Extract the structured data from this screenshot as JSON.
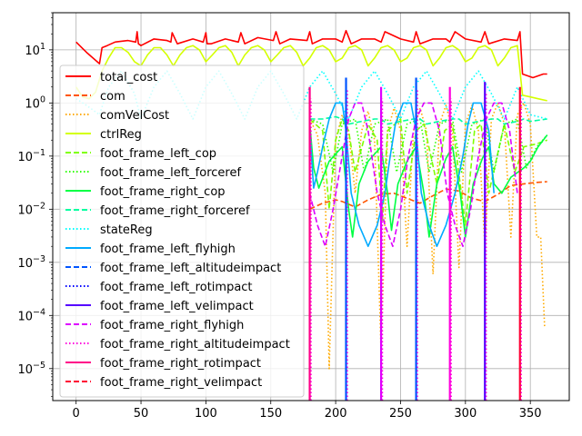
{
  "chart_data": {
    "type": "line",
    "title": "",
    "xlabel": "",
    "ylabel": "",
    "xlim": [
      -18,
      380
    ],
    "ylim": [
      2.5e-06,
      50
    ],
    "yscale": "log",
    "grid": true,
    "legend_position": "upper-left",
    "x_ticks": [
      0,
      50,
      100,
      150,
      200,
      250,
      300,
      350
    ],
    "x_tick_labels": [
      "0",
      "50",
      "100",
      "150",
      "200",
      "250",
      "300",
      "350"
    ],
    "y_ticks": [
      {
        "base": "10",
        "exp": "1"
      },
      {
        "base": "10",
        "exp": "0"
      },
      {
        "base": "10",
        "exp": "−1"
      },
      {
        "base": "10",
        "exp": "−2"
      },
      {
        "base": "10",
        "exp": "−3"
      },
      {
        "base": "10",
        "exp": "−4"
      },
      {
        "base": "10",
        "exp": "−5"
      }
    ],
    "series": [
      {
        "name": "total_cost",
        "color": "#ff0000",
        "dash": "solid",
        "x": [
          0,
          8,
          18,
          20,
          24,
          30,
          40,
          46,
          47,
          48,
          50,
          60,
          70,
          73,
          74,
          78,
          90,
          98,
          100,
          101,
          104,
          115,
          125,
          127,
          130,
          140,
          152,
          154,
          157,
          165,
          178,
          180,
          182,
          190,
          200,
          205,
          208,
          212,
          220,
          230,
          235,
          238,
          250,
          260,
          262,
          265,
          275,
          285,
          288,
          292,
          300,
          312,
          315,
          318,
          330,
          340,
          342,
          344,
          352,
          360,
          363
        ],
        "y": [
          14,
          9,
          5.5,
          11,
          12,
          14,
          15,
          14,
          22,
          13,
          12,
          16,
          15,
          14,
          21,
          13,
          16,
          14,
          21,
          13,
          13,
          16,
          14,
          21,
          13,
          17,
          15,
          22,
          13,
          16,
          15,
          22,
          13,
          16,
          16,
          14,
          23,
          13,
          16,
          16,
          14,
          22,
          16,
          14,
          22,
          13,
          16,
          16,
          14,
          22,
          16,
          14,
          22,
          13,
          16,
          15,
          22,
          3.5,
          3.0,
          3.5,
          3.5
        ]
      },
      {
        "name": "com",
        "color": "#ff5500",
        "dash": "dashed",
        "x": [
          180,
          190,
          200,
          205,
          215,
          225,
          235,
          245,
          255,
          265,
          275,
          285,
          295,
          305,
          315,
          325,
          335,
          345,
          355,
          363
        ],
        "y": [
          0.01,
          0.013,
          0.015,
          0.014,
          0.011,
          0.015,
          0.019,
          0.02,
          0.016,
          0.013,
          0.018,
          0.024,
          0.022,
          0.016,
          0.014,
          0.019,
          0.028,
          0.03,
          0.032,
          0.033
        ]
      },
      {
        "name": "comVelCost",
        "color": "#ffaa00",
        "dash": "dotted",
        "x": [
          180,
          186,
          192,
          195,
          200,
          205,
          210,
          215,
          220,
          225,
          230,
          235,
          240,
          245,
          250,
          255,
          260,
          265,
          270,
          275,
          280,
          285,
          290,
          295,
          300,
          305,
          310,
          315,
          320,
          325,
          330,
          335,
          340,
          345,
          350,
          355,
          358,
          361
        ],
        "y": [
          0.5,
          0.25,
          0.02,
          1e-05,
          0.2,
          0.6,
          0.3,
          0.02,
          0.3,
          0.7,
          0.2,
          2e-05,
          0.3,
          0.8,
          0.3,
          0.002,
          0.3,
          0.8,
          0.3,
          0.0006,
          0.4,
          0.9,
          0.3,
          0.0008,
          0.4,
          0.9,
          0.3,
          0.002,
          0.5,
          1.0,
          0.4,
          0.003,
          0.6,
          1.0,
          0.4,
          0.003,
          0.003,
          6e-05
        ]
      },
      {
        "name": "ctrlReg",
        "color": "#d4ff00",
        "dash": "solid",
        "x": [
          0,
          5,
          10,
          15,
          20,
          25,
          30,
          35,
          40,
          45,
          50,
          55,
          60,
          65,
          70,
          75,
          80,
          85,
          90,
          95,
          100,
          105,
          110,
          115,
          120,
          125,
          130,
          135,
          140,
          145,
          150,
          155,
          160,
          165,
          170,
          175,
          180,
          185,
          190,
          195,
          200,
          205,
          210,
          215,
          220,
          225,
          230,
          235,
          240,
          245,
          250,
          255,
          260,
          265,
          270,
          275,
          280,
          285,
          290,
          295,
          300,
          305,
          310,
          315,
          320,
          325,
          330,
          335,
          340,
          344,
          350,
          356,
          363
        ],
        "y": [
          2,
          1.3,
          1.2,
          1.6,
          4,
          7,
          11,
          11,
          9,
          6,
          5,
          8,
          11,
          11,
          8,
          5,
          8,
          11,
          12,
          10,
          6,
          8,
          11,
          12,
          9,
          5,
          8,
          11,
          12,
          10,
          6,
          8,
          11,
          12,
          9,
          5,
          7,
          11,
          12,
          10,
          6,
          7,
          11,
          12,
          10,
          5,
          7,
          11,
          12,
          10,
          6,
          7,
          11,
          12,
          10,
          5,
          7,
          11,
          12,
          10,
          6,
          7,
          11,
          12,
          10,
          5,
          7,
          11,
          12,
          1.4,
          1.3,
          1.2,
          1.1
        ]
      },
      {
        "name": "foot_frame_left_cop",
        "color": "#7fff00",
        "dash": "dashed",
        "x": [
          180,
          190,
          195,
          200,
          205,
          210,
          215,
          225,
          232,
          236,
          240,
          250,
          255,
          262,
          268,
          278,
          284,
          290,
          300,
          307,
          312,
          318,
          330,
          338,
          345,
          355,
          363
        ],
        "y": [
          0.5,
          0.3,
          0.01,
          0.2,
          0.5,
          0.3,
          0.05,
          0.4,
          0.2,
          0.006,
          0.3,
          0.5,
          0.02,
          0.3,
          0.4,
          0.03,
          0.3,
          0.4,
          0.005,
          0.3,
          0.4,
          0.02,
          0.4,
          0.05,
          0.15,
          0.17,
          0.2
        ]
      },
      {
        "name": "foot_frame_left_forceref",
        "color": "#2fff00",
        "dash": "dotted",
        "x": [
          180,
          190,
          198,
          205,
          215,
          222,
          230,
          240,
          247,
          255,
          265,
          272,
          280,
          290,
          297,
          305,
          315,
          322,
          330,
          340,
          347,
          355,
          363
        ],
        "y": [
          0.5,
          0.4,
          0.05,
          0.4,
          0.5,
          0.05,
          0.4,
          0.5,
          0.05,
          0.4,
          0.5,
          0.05,
          0.4,
          0.5,
          0.05,
          0.4,
          0.5,
          0.05,
          0.4,
          0.5,
          0.06,
          0.15,
          0.25
        ]
      },
      {
        "name": "foot_frame_right_cop",
        "color": "#00ff44",
        "dash": "solid",
        "x": [
          180,
          183,
          187,
          195,
          205,
          210,
          213,
          218,
          225,
          235,
          240,
          243,
          248,
          255,
          262,
          268,
          272,
          278,
          285,
          290,
          296,
          300,
          306,
          313,
          318,
          322,
          328,
          335,
          345,
          350,
          356,
          363
        ],
        "y": [
          0.4,
          0.06,
          0.025,
          0.08,
          0.15,
          0.01,
          0.003,
          0.03,
          0.08,
          0.15,
          0.02,
          0.004,
          0.03,
          0.08,
          0.15,
          0.02,
          0.003,
          0.03,
          0.09,
          0.15,
          0.02,
          0.003,
          0.03,
          0.09,
          0.15,
          0.03,
          0.02,
          0.04,
          0.06,
          0.08,
          0.15,
          0.25
        ]
      },
      {
        "name": "foot_frame_right_forceref",
        "color": "#00ffa0",
        "dash": "dashed",
        "x": [
          180,
          190,
          200,
          205,
          210,
          220,
          230,
          235,
          240,
          250,
          260,
          265,
          270,
          280,
          290,
          295,
          300,
          310,
          320,
          325,
          330,
          340,
          345,
          350,
          363
        ],
        "y": [
          0.5,
          0.5,
          0.55,
          0.5,
          0.4,
          0.45,
          0.5,
          0.5,
          0.4,
          0.45,
          0.5,
          0.5,
          0.4,
          0.45,
          0.5,
          0.5,
          0.4,
          0.45,
          0.5,
          0.5,
          0.4,
          0.45,
          0.5,
          0.45,
          0.5
        ]
      },
      {
        "name": "stateReg",
        "color": "#00ffff",
        "dash": "dotted",
        "x": [
          0,
          8,
          18,
          25,
          35,
          45,
          50,
          60,
          70,
          80,
          90,
          100,
          110,
          120,
          130,
          140,
          150,
          160,
          170,
          180,
          190,
          200,
          210,
          220,
          230,
          240,
          250,
          260,
          270,
          280,
          290,
          300,
          310,
          320,
          330,
          340,
          350,
          363
        ],
        "y": [
          1.2,
          0.9,
          0.6,
          2,
          4,
          1.5,
          0.5,
          2,
          4,
          1.5,
          0.5,
          2,
          4,
          1.5,
          0.5,
          2,
          4,
          1.5,
          0.5,
          2,
          4,
          1.5,
          0.5,
          2,
          4,
          1.5,
          0.5,
          2,
          4,
          1.5,
          0.5,
          2,
          4,
          1.5,
          0.5,
          2,
          0.6,
          0.5
        ]
      },
      {
        "name": "foot_frame_left_flyhigh",
        "color": "#00aaff",
        "dash": "solid",
        "x": [
          180,
          183,
          186,
          190,
          195,
          200,
          205,
          208,
          212,
          218,
          225,
          232,
          238,
          242,
          246,
          252,
          258,
          262,
          266,
          272,
          278,
          285,
          292,
          298,
          302,
          306,
          312,
          318,
          322
        ],
        "y": [
          0.3,
          0.025,
          0.05,
          0.15,
          0.5,
          1.0,
          1.0,
          0.3,
          0.02,
          0.005,
          0.002,
          0.005,
          0.02,
          0.1,
          0.4,
          1.0,
          1.0,
          0.3,
          0.02,
          0.005,
          0.002,
          0.005,
          0.02,
          0.1,
          0.4,
          1.0,
          1.0,
          0.3,
          0.02
        ]
      },
      {
        "name": "foot_frame_left_altitudeimpact",
        "color": "#0055ff",
        "dash": "dashed",
        "x": [],
        "y": []
      },
      {
        "name": "foot_frame_left_rotimpact",
        "color": "#0000ff",
        "dash": "dotted",
        "x": [],
        "y": []
      },
      {
        "name": "foot_frame_left_velimpact",
        "color": "#5500ff",
        "dash": "solid",
        "x": [],
        "y": []
      },
      {
        "name": "foot_frame_right_flyhigh",
        "color": "#dd00ff",
        "dash": "dashed",
        "x": [
          180,
          186,
          192,
          198,
          205,
          210,
          215,
          220,
          225,
          232,
          238,
          244,
          250,
          256,
          262,
          268,
          274,
          280,
          286,
          292,
          298,
          304,
          310,
          316,
          322,
          328,
          334,
          340
        ],
        "y": [
          0.02,
          0.005,
          0.002,
          0.01,
          0.1,
          0.5,
          1.0,
          1.0,
          0.3,
          0.02,
          0.005,
          0.002,
          0.01,
          0.1,
          0.5,
          1.0,
          1.0,
          0.3,
          0.02,
          0.005,
          0.002,
          0.01,
          0.1,
          0.5,
          1.0,
          1.0,
          0.3,
          0.02
        ]
      },
      {
        "name": "foot_frame_right_altitudeimpact",
        "color": "#ff00dd",
        "dash": "dotted",
        "x": [],
        "y": []
      },
      {
        "name": "foot_frame_right_rotimpact",
        "color": "#ff0088",
        "dash": "solid",
        "x": [],
        "y": []
      },
      {
        "name": "foot_frame_right_velimpact",
        "color": "#ff0033",
        "dash": "dashed",
        "x": [],
        "y": []
      }
    ],
    "impact_spikes": [
      {
        "x": 180,
        "color": "#ff0088",
        "peak": 2.0
      },
      {
        "x": 208,
        "color": "#0055ff",
        "peak": 3.0
      },
      {
        "x": 235,
        "color": "#dd00ff",
        "peak": 2.0
      },
      {
        "x": 262,
        "color": "#0055ff",
        "peak": 3.0
      },
      {
        "x": 288,
        "color": "#ff00dd",
        "peak": 2.0
      },
      {
        "x": 315,
        "color": "#5500ff",
        "peak": 2.5
      },
      {
        "x": 342,
        "color": "#ff0033",
        "peak": 2.0
      }
    ]
  }
}
